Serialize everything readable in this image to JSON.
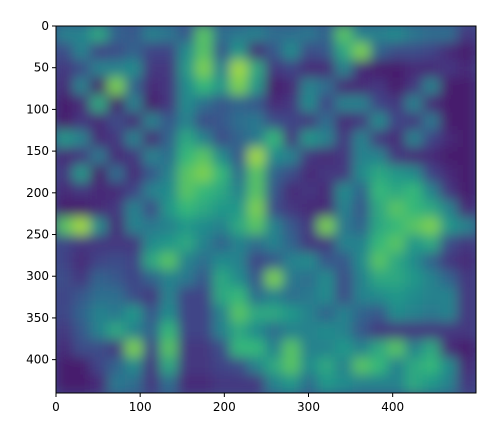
{
  "chart_data": {
    "type": "heatmap",
    "title": "",
    "xlabel": "",
    "ylabel": "",
    "colormap": "viridis",
    "xlim": [
      0,
      499
    ],
    "ylim": [
      440,
      0
    ],
    "x_ticks": [
      0,
      100,
      200,
      300,
      400
    ],
    "y_ticks": [
      0,
      50,
      100,
      150,
      200,
      250,
      300,
      350,
      400
    ],
    "grid": false,
    "legend": "none",
    "colors": {
      "low": "#440154",
      "mid": "#21918c",
      "high": "#fde725",
      "frame": "#000000"
    },
    "approx_levels_grid": {
      "note_cols_x_range": [
        0,
        499
      ],
      "note_rows_y_range": [
        0,
        440
      ],
      "values": [
        [
          0.55,
          0.55,
          0.7,
          0.4,
          0.35,
          0.55,
          0.5,
          0.35,
          0.8,
          0.45,
          0.5,
          0.55,
          0.45,
          0.45,
          0.5,
          0.4,
          0.8,
          0.55,
          0.55,
          0.6,
          0.5,
          0.45,
          0.45,
          0.2
        ],
        [
          0.3,
          0.55,
          0.25,
          0.3,
          0.4,
          0.25,
          0.25,
          0.6,
          0.8,
          0.35,
          0.65,
          0.15,
          0.35,
          0.6,
          0.3,
          0.35,
          0.7,
          0.85,
          0.4,
          0.3,
          0.3,
          0.25,
          0.15,
          0.1
        ],
        [
          0.2,
          0.3,
          0.55,
          0.55,
          0.6,
          0.2,
          0.2,
          0.65,
          0.85,
          0.55,
          0.9,
          0.7,
          0.2,
          0.25,
          0.15,
          0.15,
          0.55,
          0.15,
          0.1,
          0.1,
          0.15,
          0.15,
          0.2,
          0.15
        ],
        [
          0.15,
          0.55,
          0.1,
          0.85,
          0.4,
          0.15,
          0.2,
          0.6,
          0.75,
          0.65,
          0.85,
          0.65,
          0.1,
          0.15,
          0.55,
          0.45,
          0.15,
          0.15,
          0.2,
          0.1,
          0.2,
          0.55,
          0.1,
          0.1
        ],
        [
          0.1,
          0.15,
          0.7,
          0.1,
          0.55,
          0.1,
          0.2,
          0.6,
          0.45,
          0.35,
          0.4,
          0.35,
          0.15,
          0.2,
          0.6,
          0.25,
          0.55,
          0.55,
          0.25,
          0.2,
          0.55,
          0.15,
          0.1,
          0.1
        ],
        [
          0.1,
          0.2,
          0.15,
          0.3,
          0.15,
          0.55,
          0.35,
          0.55,
          0.3,
          0.35,
          0.45,
          0.5,
          0.3,
          0.25,
          0.2,
          0.45,
          0.15,
          0.2,
          0.6,
          0.25,
          0.2,
          0.5,
          0.1,
          0.1
        ],
        [
          0.65,
          0.55,
          0.15,
          0.2,
          0.55,
          0.15,
          0.4,
          0.7,
          0.55,
          0.3,
          0.4,
          0.5,
          0.75,
          0.2,
          0.65,
          0.55,
          0.2,
          0.55,
          0.2,
          0.15,
          0.55,
          0.25,
          0.15,
          0.1
        ],
        [
          0.15,
          0.2,
          0.5,
          0.15,
          0.2,
          0.55,
          0.45,
          0.75,
          0.8,
          0.6,
          0.35,
          0.9,
          0.6,
          0.55,
          0.2,
          0.15,
          0.2,
          0.55,
          0.55,
          0.2,
          0.15,
          0.15,
          0.1,
          0.1
        ],
        [
          0.2,
          0.65,
          0.1,
          0.45,
          0.15,
          0.35,
          0.55,
          0.8,
          0.85,
          0.75,
          0.45,
          0.8,
          0.4,
          0.3,
          0.15,
          0.2,
          0.2,
          0.6,
          0.7,
          0.65,
          0.6,
          0.25,
          0.15,
          0.1
        ],
        [
          0.15,
          0.2,
          0.15,
          0.15,
          0.25,
          0.55,
          0.6,
          0.8,
          0.75,
          0.7,
          0.55,
          0.8,
          0.35,
          0.15,
          0.2,
          0.15,
          0.6,
          0.4,
          0.75,
          0.7,
          0.75,
          0.55,
          0.2,
          0.1
        ],
        [
          0.1,
          0.1,
          0.15,
          0.2,
          0.55,
          0.3,
          0.65,
          0.75,
          0.7,
          0.65,
          0.65,
          0.85,
          0.3,
          0.2,
          0.15,
          0.15,
          0.55,
          0.35,
          0.7,
          0.8,
          0.75,
          0.7,
          0.55,
          0.15
        ],
        [
          0.8,
          0.9,
          0.6,
          0.15,
          0.55,
          0.5,
          0.55,
          0.65,
          0.6,
          0.55,
          0.7,
          0.8,
          0.55,
          0.35,
          0.2,
          0.85,
          0.5,
          0.4,
          0.7,
          0.75,
          0.8,
          0.85,
          0.65,
          0.55
        ],
        [
          0.25,
          0.2,
          0.2,
          0.2,
          0.2,
          0.6,
          0.65,
          0.7,
          0.55,
          0.4,
          0.55,
          0.45,
          0.55,
          0.4,
          0.2,
          0.2,
          0.55,
          0.55,
          0.75,
          0.8,
          0.65,
          0.7,
          0.3,
          0.2
        ],
        [
          0.25,
          0.15,
          0.25,
          0.3,
          0.25,
          0.7,
          0.8,
          0.55,
          0.45,
          0.6,
          0.55,
          0.25,
          0.35,
          0.55,
          0.6,
          0.35,
          0.35,
          0.6,
          0.8,
          0.7,
          0.6,
          0.4,
          0.2,
          0.15
        ],
        [
          0.3,
          0.2,
          0.4,
          0.35,
          0.25,
          0.4,
          0.55,
          0.5,
          0.35,
          0.7,
          0.6,
          0.35,
          0.85,
          0.5,
          0.45,
          0.6,
          0.3,
          0.55,
          0.7,
          0.7,
          0.65,
          0.55,
          0.4,
          0.2
        ],
        [
          0.25,
          0.35,
          0.45,
          0.45,
          0.3,
          0.2,
          0.55,
          0.25,
          0.25,
          0.7,
          0.75,
          0.45,
          0.55,
          0.45,
          0.5,
          0.6,
          0.3,
          0.55,
          0.6,
          0.65,
          0.6,
          0.55,
          0.55,
          0.2
        ],
        [
          0.25,
          0.4,
          0.55,
          0.5,
          0.65,
          0.35,
          0.6,
          0.25,
          0.25,
          0.55,
          0.8,
          0.7,
          0.7,
          0.65,
          0.55,
          0.4,
          0.55,
          0.4,
          0.35,
          0.6,
          0.55,
          0.5,
          0.55,
          0.2
        ],
        [
          0.2,
          0.35,
          0.55,
          0.7,
          0.55,
          0.4,
          0.75,
          0.25,
          0.25,
          0.55,
          0.7,
          0.6,
          0.45,
          0.55,
          0.55,
          0.6,
          0.55,
          0.35,
          0.2,
          0.2,
          0.2,
          0.2,
          0.2,
          0.2
        ],
        [
          0.15,
          0.3,
          0.3,
          0.2,
          0.85,
          0.25,
          0.8,
          0.2,
          0.2,
          0.3,
          0.75,
          0.75,
          0.55,
          0.8,
          0.55,
          0.55,
          0.65,
          0.55,
          0.7,
          0.8,
          0.55,
          0.7,
          0.15,
          0.1
        ],
        [
          0.1,
          0.1,
          0.25,
          0.4,
          0.6,
          0.2,
          0.7,
          0.2,
          0.2,
          0.25,
          0.3,
          0.55,
          0.7,
          0.8,
          0.6,
          0.7,
          0.55,
          0.8,
          0.75,
          0.55,
          0.7,
          0.75,
          0.6,
          0.15
        ],
        [
          0.1,
          0.1,
          0.15,
          0.5,
          0.45,
          0.2,
          0.45,
          0.15,
          0.15,
          0.2,
          0.2,
          0.2,
          0.55,
          0.65,
          0.45,
          0.65,
          0.6,
          0.55,
          0.55,
          0.55,
          0.7,
          0.65,
          0.55,
          0.2
        ]
      ]
    }
  }
}
